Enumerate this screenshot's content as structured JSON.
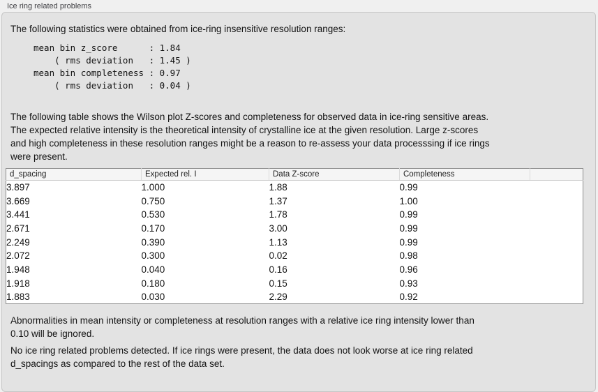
{
  "panel": {
    "title": "Ice ring related problems"
  },
  "stats": {
    "intro": "The following statistics were obtained from ice-ring insensitive resolution ranges:",
    "block": "mean bin z_score      : 1.84\n    ( rms deviation   : 1.45 )\nmean bin completeness : 0.97\n    ( rms deviation   : 0.04 )",
    "mean_bin_z_score": "1.84",
    "z_score_rms_deviation": "1.45",
    "mean_bin_completeness": "0.97",
    "completeness_rms_deviation": "0.04"
  },
  "table_intro": "The following table shows the Wilson plot Z-scores and completeness for observed data in ice-ring sensitive areas.\nThe expected relative intensity is the theoretical intensity of crystalline ice at the given resolution. Large z-scores\nand high completeness in these resolution ranges might be a reason to re-assess your data processsing if ice rings\nwere present.",
  "table": {
    "columns": [
      "d_spacing",
      "Expected rel. I",
      "Data Z-score",
      "Completeness"
    ],
    "rows": [
      [
        "3.897",
        "1.000",
        "1.88",
        "0.99"
      ],
      [
        "3.669",
        "0.750",
        "1.37",
        "1.00"
      ],
      [
        "3.441",
        "0.530",
        "1.78",
        "0.99"
      ],
      [
        "2.671",
        "0.170",
        "3.00",
        "0.99"
      ],
      [
        "2.249",
        "0.390",
        "1.13",
        "0.99"
      ],
      [
        "2.072",
        "0.300",
        "0.02",
        "0.98"
      ],
      [
        "1.948",
        "0.040",
        "0.16",
        "0.96"
      ],
      [
        "1.918",
        "0.180",
        "0.15",
        "0.93"
      ],
      [
        "1.883",
        "0.030",
        "2.29",
        "0.92"
      ]
    ]
  },
  "notes": {
    "threshold": "Abnormalities in mean intensity or completeness at resolution ranges with a relative ice ring intensity lower than\n0.10 will be ignored.",
    "conclusion": "No ice ring related problems detected. If ice rings were present, the data does not look worse at ice ring related\nd_spacings as compared to the rest of the data set."
  },
  "colors": {
    "page_background": "#f0f0f0",
    "panel_background": "#e3e3e3",
    "table_header_background": "#f5f5f5",
    "table_border": "#8d8d8d",
    "text": "#131313"
  }
}
